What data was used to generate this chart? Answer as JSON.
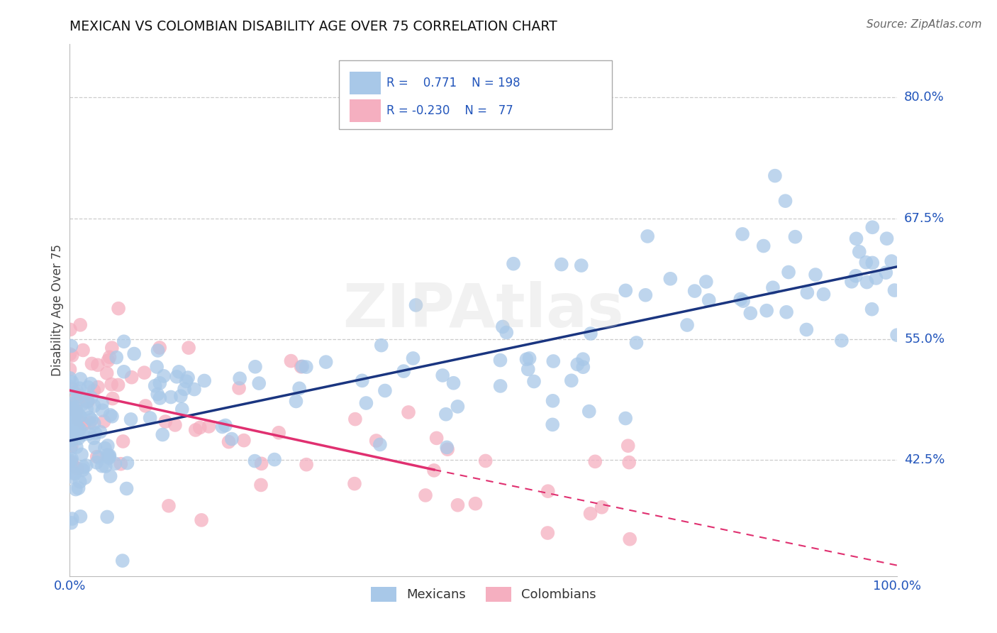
{
  "title": "MEXICAN VS COLOMBIAN DISABILITY AGE OVER 75 CORRELATION CHART",
  "source": "Source: ZipAtlas.com",
  "ylabel": "Disability Age Over 75",
  "xlim": [
    0.0,
    1.0
  ],
  "ylim": [
    0.305,
    0.855
  ],
  "xtick_labels": [
    "0.0%",
    "100.0%"
  ],
  "xtick_positions": [
    0.0,
    1.0
  ],
  "ytick_labels": [
    "42.5%",
    "55.0%",
    "67.5%",
    "80.0%"
  ],
  "ytick_positions": [
    0.425,
    0.55,
    0.675,
    0.8
  ],
  "mexican_R": "0.771",
  "mexican_N": "198",
  "colombian_R": "-0.230",
  "colombian_N": "77",
  "scatter_color_mexican": "#a8c8e8",
  "scatter_color_colombian": "#f5afc0",
  "line_color_mexican": "#1a3580",
  "line_color_colombian": "#e03070",
  "watermark": "ZIPAtlas",
  "background_color": "#ffffff",
  "grid_color": "#cccccc",
  "mexican_line": [
    0.0,
    0.445,
    1.0,
    0.625
  ],
  "colombian_line_solid": [
    0.0,
    0.497,
    0.44,
    0.415
  ],
  "colombian_line_dashed": [
    0.44,
    0.415,
    1.0,
    0.316
  ],
  "n_mexican": 198,
  "n_colombian": 77,
  "seed_mexican": 42,
  "seed_colombian": 7
}
